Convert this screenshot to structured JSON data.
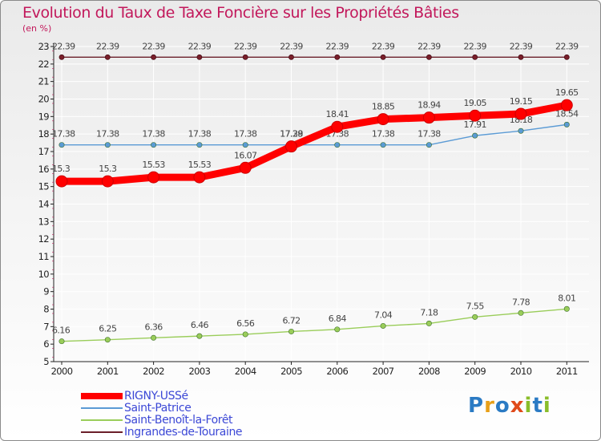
{
  "title": "Evolution du Taux de Taxe Foncière sur les Propriétés Bâties",
  "unit": "(en %)",
  "logo": {
    "letters": [
      "P",
      "r",
      "o",
      "x",
      "i",
      "t",
      "i"
    ],
    "colors": [
      "#2b7bc4",
      "#e8a018",
      "#2b7bc4",
      "#e04a1a",
      "#8abd2a",
      "#2b7bc4",
      "#8abd2a"
    ]
  },
  "chart_data": {
    "type": "line",
    "title": "Evolution du Taux de Taxe Foncière sur les Propriétés Bâties",
    "ylabel": "(en %)",
    "xlabel": "",
    "ylim": [
      5,
      23
    ],
    "yticks": [
      5,
      6,
      7,
      8,
      9,
      10,
      11,
      12,
      13,
      14,
      15,
      16,
      17,
      18,
      19,
      20,
      21,
      22,
      23
    ],
    "categories": [
      "2000",
      "2001",
      "2002",
      "2003",
      "2004",
      "2005",
      "2006",
      "2007",
      "2008",
      "2009",
      "2010",
      "2011"
    ],
    "series": [
      {
        "name": "Ingrandes-de-Touraine",
        "color": "#6b1f2a",
        "values": [
          22.39,
          22.39,
          22.39,
          22.39,
          22.39,
          22.39,
          22.39,
          22.39,
          22.39,
          22.39,
          22.39,
          22.39
        ],
        "labels": [
          "22.39",
          "22.39",
          "22.39",
          "22.39",
          "22.39",
          "22.39",
          "22.39",
          "22.39",
          "22.39",
          "22.39",
          "22.39",
          "22.39"
        ]
      },
      {
        "name": "Saint-Benoît-la-Forêt",
        "color": "#9acd5a",
        "values": [
          6.16,
          6.25,
          6.36,
          6.46,
          6.56,
          6.72,
          6.84,
          7.04,
          7.18,
          7.55,
          7.78,
          8.01
        ],
        "labels": [
          "6.16",
          "6.25",
          "6.36",
          "6.46",
          "6.56",
          "6.72",
          "6.84",
          "7.04",
          "7.18",
          "7.55",
          "7.78",
          "8.01"
        ]
      },
      {
        "name": "Saint-Patrice",
        "color": "#5b9bd5",
        "values": [
          17.38,
          17.38,
          17.38,
          17.38,
          17.38,
          17.38,
          17.38,
          17.38,
          17.38,
          17.91,
          18.18,
          18.54
        ],
        "labels": [
          "17.38",
          "17.38",
          "17.38",
          "17.38",
          "17.38",
          "17.38",
          "17.38",
          "17.38",
          "17.38",
          "17.91",
          "18.18",
          "18.54"
        ]
      },
      {
        "name": "RIGNY-USSé",
        "color": "#ff0000",
        "values": [
          15.3,
          15.3,
          15.53,
          15.53,
          16.07,
          17.29,
          18.41,
          18.85,
          18.94,
          19.05,
          19.15,
          19.65
        ],
        "labels": [
          "15.3",
          "15.3",
          "15.53",
          "15.53",
          "16.07",
          "17.29",
          "18.41",
          "18.85",
          "18.94",
          "19.05",
          "19.15",
          "19.65"
        ]
      }
    ],
    "legend": [
      "RIGNY-USSé",
      "Saint-Patrice",
      "Saint-Benoît-la-Forêt",
      "Ingrandes-de-Touraine"
    ],
    "legend_position": "bottom-left"
  }
}
